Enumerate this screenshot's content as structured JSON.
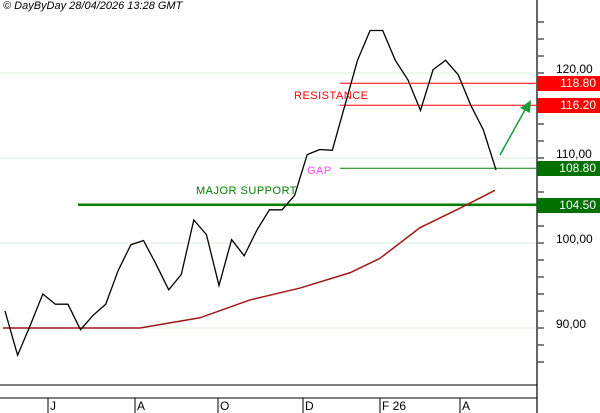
{
  "header": "© DayByDay 28/04/2026  13:28 GMT",
  "chart_data": {
    "type": "line",
    "ylim": [
      82,
      127
    ],
    "yticks": [
      "120,00",
      "110,00",
      "100,00",
      "90,00"
    ],
    "ytick_values": [
      120,
      110,
      100,
      90
    ],
    "xticks": [
      "J",
      "A",
      "O",
      "D",
      "F 26",
      "A"
    ],
    "grid": true,
    "price": [
      92,
      86.8,
      90.3,
      94,
      92.8,
      92.8,
      89.8,
      91.5,
      92.8,
      96.8,
      99.8,
      100.3,
      97.5,
      94.5,
      96.3,
      102.7,
      101,
      95,
      100.4,
      98.5,
      101.5,
      103.9,
      103.9,
      105.6,
      110.4,
      111,
      110.9,
      116.2,
      121.5,
      125,
      125,
      121.5,
      119.2,
      115.6,
      120.4,
      121.5,
      119.8,
      116.2,
      113.3,
      108.6
    ],
    "moving_average": [
      90,
      90,
      90,
      91.2,
      93.3,
      94.7,
      96.5,
      98.2,
      101.8,
      104.1,
      106.2
    ],
    "levels": [
      {
        "value": 118.8,
        "label": "118.80",
        "color": "#ff0000",
        "kind": "resistance"
      },
      {
        "value": 116.2,
        "label": "116.20",
        "color": "#ff0000",
        "kind": "resistance"
      },
      {
        "value": 108.8,
        "label": "108.80",
        "color": "#008000",
        "kind": "gap"
      },
      {
        "value": 104.5,
        "label": "104.50",
        "color": "#008000",
        "kind": "major support"
      }
    ],
    "annotations": {
      "resistance": "RESISTANCE",
      "gap": "GAP",
      "support": "MAJOR SUPPORT"
    },
    "colors": {
      "price": "#000000",
      "ma": "#a01818",
      "grid": "#d8f0d8",
      "resistance": "#ff0000",
      "support": "#008000",
      "gap_label": "#ff44ff",
      "arrow": "#1a9a3a"
    }
  }
}
